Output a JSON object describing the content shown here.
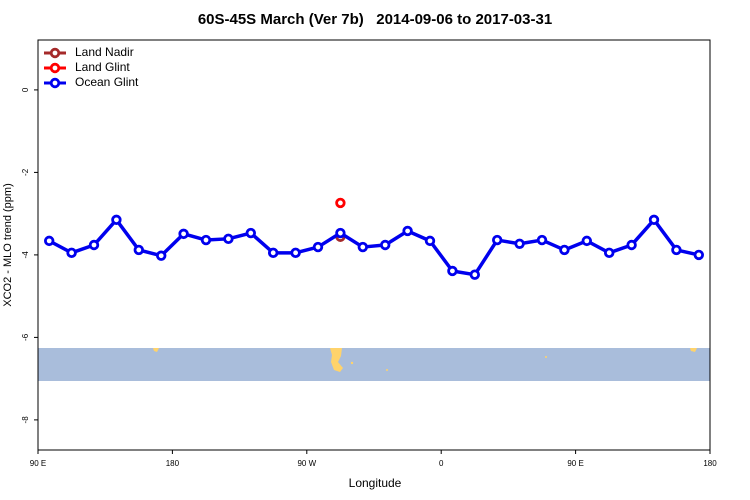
{
  "chart_data": {
    "type": "line",
    "title": "60S-45S March (Ver 7b)   2014-09-06 to 2017-03-31",
    "x_label": "Longitude",
    "y_label": "XCO2 - MLO trend (ppm)",
    "xlim": [
      90,
      540
    ],
    "xticks": [
      {
        "value": 90,
        "label": "90 E"
      },
      180,
      {
        "value": 270,
        "label": "90 W"
      },
      {
        "value": 360,
        "label": "0"
      },
      {
        "value": 450,
        "label": "90 E"
      },
      {
        "value": 540,
        "label": "180"
      }
    ],
    "ylim": [
      -8.73,
      1.21
    ],
    "yticks": [
      0,
      -2,
      -4,
      -6,
      -8
    ],
    "legend": "top-left",
    "series": [
      {
        "name": "Land Nadir",
        "color": "#a52a2a",
        "x": [
          292.5
        ],
        "values": [
          -3.56
        ]
      },
      {
        "name": "Land Glint",
        "color": "#ff0000",
        "x": [
          292.5
        ],
        "values": [
          -2.74
        ]
      },
      {
        "name": "Ocean Glint",
        "color": "#0000ee",
        "x": [
          97.5,
          112.5,
          127.5,
          142.5,
          157.5,
          172.5,
          187.5,
          202.5,
          217.5,
          232.5,
          247.5,
          262.5,
          277.5,
          292.5,
          307.5,
          322.5,
          337.5,
          352.5,
          367.5,
          382.5,
          397.5,
          412.5,
          427.5,
          442.5,
          457.5,
          472.5,
          487.5,
          502.5,
          517.5,
          532.5
        ],
        "values": [
          -3.66,
          -3.95,
          -3.76,
          -3.15,
          -3.88,
          -4.02,
          -3.49,
          -3.64,
          -3.61,
          -3.47,
          -3.95,
          -3.95,
          -3.81,
          -3.47,
          -3.81,
          -3.76,
          -3.42,
          -3.66,
          -4.39,
          -4.48,
          -3.64,
          -3.73,
          -3.64,
          -3.88,
          -3.66,
          -3.95,
          -3.76,
          -3.15,
          -3.88,
          -4.0
        ]
      }
    ]
  }
}
